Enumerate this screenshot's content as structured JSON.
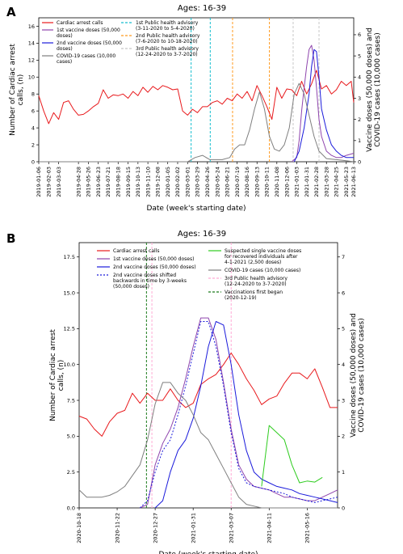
{
  "chart_data": [
    {
      "panel": "A",
      "title": "Ages: 16-39",
      "type": "line",
      "xlabel": "Date (week's starting date)",
      "ylabel": "Number of Cardiac arrest calls, (n)",
      "y2label": "Vaccine doses (50,000 doses) and COVID-19 cases (10,000 cases)",
      "xlim": [
        "2019-01-06",
        "2021-06-13"
      ],
      "ylim": [
        0,
        17
      ],
      "y2lim": [
        0,
        6.8
      ],
      "yticks": [
        "0",
        "2",
        "4",
        "6",
        "8",
        "10",
        "12",
        "14",
        "16"
      ],
      "y2ticks": [
        "0",
        "1",
        "2",
        "3",
        "4",
        "5",
        "6"
      ],
      "xticks": [
        "2019-01-06",
        "2019-02-03",
        "2019-03-03",
        "2019-04-28",
        "2019-05-26",
        "2019-06-23",
        "2019-07-21",
        "2019-08-18",
        "2019-09-15",
        "2019-10-13",
        "2019-11-10",
        "2019-12-08",
        "2020-01-05",
        "2020-02-02",
        "2020-03-01",
        "2020-03-29",
        "2020-04-26",
        "2020-05-24",
        "2020-06-21",
        "2020-07-19",
        "2020-08-16",
        "2020-09-13",
        "2020-10-11",
        "2020-11-08",
        "2020-12-06",
        "2021-01-03",
        "2021-01-31",
        "2021-02-28",
        "2021-03-28",
        "2021-04-25",
        "2021-05-23",
        "2021-06-13"
      ],
      "legend_placement": "top",
      "series": [
        {
          "name": "Cardiac arrest calls",
          "axis": "left",
          "color": "#e8191c",
          "dates": [
            "2019-01-06",
            "2019-01-20",
            "2019-02-03",
            "2019-02-17",
            "2019-03-03",
            "2019-03-17",
            "2019-03-31",
            "2019-04-14",
            "2019-04-28",
            "2019-05-12",
            "2019-05-26",
            "2019-06-09",
            "2019-06-23",
            "2019-07-07",
            "2019-07-21",
            "2019-08-04",
            "2019-08-18",
            "2019-09-01",
            "2019-09-15",
            "2019-09-29",
            "2019-10-13",
            "2019-10-27",
            "2019-11-10",
            "2019-11-24",
            "2019-12-08",
            "2019-12-22",
            "2020-01-05",
            "2020-01-19",
            "2020-02-02",
            "2020-02-16",
            "2020-03-01",
            "2020-03-15",
            "2020-03-29",
            "2020-04-12",
            "2020-04-26",
            "2020-05-10",
            "2020-05-24",
            "2020-06-07",
            "2020-06-21",
            "2020-07-05",
            "2020-07-19",
            "2020-08-02",
            "2020-08-16",
            "2020-08-30",
            "2020-09-13",
            "2020-09-27",
            "2020-10-11",
            "2020-10-25",
            "2020-11-08",
            "2020-11-22",
            "2020-12-06",
            "2020-12-20",
            "2021-01-03",
            "2021-01-17",
            "2021-01-31",
            "2021-02-14",
            "2021-02-28",
            "2021-03-14",
            "2021-03-28",
            "2021-04-11",
            "2021-04-25",
            "2021-05-09",
            "2021-05-23",
            "2021-06-06",
            "2021-06-13"
          ],
          "values": [
            7.8,
            6.0,
            4.5,
            5.8,
            5.0,
            7.0,
            7.2,
            6.2,
            5.5,
            5.6,
            6.0,
            6.5,
            6.9,
            8.5,
            7.5,
            7.9,
            7.8,
            8.0,
            7.5,
            8.3,
            7.8,
            8.8,
            8.2,
            8.9,
            8.5,
            9.0,
            8.8,
            8.5,
            8.6,
            6.0,
            5.5,
            6.2,
            5.8,
            6.5,
            6.5,
            7.0,
            7.2,
            6.8,
            7.5,
            7.2,
            8.0,
            7.5,
            8.3,
            7.2,
            9.0,
            7.8,
            6.5,
            5.0,
            8.8,
            7.5,
            8.6,
            8.5,
            7.8,
            9.5,
            8.0,
            9.2,
            10.8,
            8.6,
            9.0,
            8.0,
            8.5,
            9.5,
            9.0,
            9.5,
            7.0
          ]
        },
        {
          "name": "1st vaccine doses (50,000 doses)",
          "axis": "right",
          "color": "#8e44ad",
          "dates": [
            "2020-12-20",
            "2021-01-03",
            "2021-01-10",
            "2021-01-17",
            "2021-01-24",
            "2021-01-31",
            "2021-02-07",
            "2021-02-14",
            "2021-02-21",
            "2021-02-28",
            "2021-03-07",
            "2021-03-14",
            "2021-03-28",
            "2021-04-11",
            "2021-04-25",
            "2021-05-09",
            "2021-05-23",
            "2021-06-13"
          ],
          "values": [
            0,
            0.2,
            1.0,
            2.4,
            3.5,
            4.5,
            5.3,
            5.5,
            4.8,
            3.5,
            2.0,
            1.2,
            0.5,
            0.3,
            0.2,
            0.2,
            0.3,
            0.4
          ]
        },
        {
          "name": "2nd vaccine doses (50,000 doses)",
          "axis": "right",
          "color": "#1a1adb",
          "dates": [
            "2020-12-27",
            "2021-01-10",
            "2021-01-24",
            "2021-02-07",
            "2021-02-14",
            "2021-02-21",
            "2021-02-28",
            "2021-03-07",
            "2021-03-14",
            "2021-03-28",
            "2021-04-11",
            "2021-04-25",
            "2021-05-09",
            "2021-05-23",
            "2021-06-13"
          ],
          "values": [
            0,
            0.5,
            1.6,
            3.2,
            4.5,
            5.3,
            5.2,
            4.0,
            2.5,
            1.5,
            0.8,
            0.5,
            0.3,
            0.2,
            0.2
          ]
        },
        {
          "name": "COVID-19 cases (10,000 cases)",
          "axis": "right",
          "color": "#7f7f7f",
          "dates": [
            "2019-01-06",
            "2020-02-02",
            "2020-03-01",
            "2020-03-22",
            "2020-04-12",
            "2020-05-03",
            "2020-06-07",
            "2020-06-28",
            "2020-07-12",
            "2020-07-26",
            "2020-08-09",
            "2020-08-23",
            "2020-09-06",
            "2020-09-20",
            "2020-10-04",
            "2020-10-18",
            "2020-11-01",
            "2020-11-15",
            "2020-11-29",
            "2020-12-13",
            "2020-12-27",
            "2021-01-10",
            "2021-01-24",
            "2021-02-07",
            "2021-02-21",
            "2021-03-07",
            "2021-03-28",
            "2021-04-25",
            "2021-05-23",
            "2021-06-13"
          ],
          "values": [
            0,
            0,
            0,
            0.2,
            0.3,
            0.1,
            0.1,
            0.2,
            0.6,
            0.8,
            0.8,
            1.5,
            2.5,
            3.3,
            2.5,
            1.2,
            0.6,
            0.5,
            0.8,
            1.6,
            3.2,
            3.7,
            3.2,
            2.2,
            1.2,
            0.5,
            0.15,
            0.1,
            0.05,
            0.0
          ]
        }
      ],
      "advisories": [
        {
          "name": "1st Public health advisory (3-11-2020 to 5-4-2020)",
          "color": "#17becf",
          "start": "2020-03-11",
          "end": "2020-05-04"
        },
        {
          "name": "2nd Public health advisory (7-6-2020 to 10-18-2020)",
          "color": "#ff9a1f",
          "start": "2020-07-06",
          "end": "2020-10-18"
        },
        {
          "name": "3rd Public health advisory (12-24-2020 to 3-7-2020)",
          "color": "#c8c8c8",
          "start": "2020-12-24",
          "end": "2021-03-07"
        }
      ]
    },
    {
      "panel": "B",
      "title": "Ages: 16-39",
      "type": "line",
      "xlabel": "Date (week's starting date)",
      "ylabel": "Number of Cardiac arrest calls, (n)",
      "y2label": "Vaccine doses (50,000 doses) and COVID-19 cases (10,000 cases)",
      "xlim": [
        "2020-10-18",
        "2021-06-13"
      ],
      "ylim": [
        0,
        18.5
      ],
      "y2lim": [
        0,
        7.4
      ],
      "yticks": [
        "0.0",
        "2.5",
        "5.0",
        "7.5",
        "10.0",
        "12.5",
        "15.0",
        "17.5"
      ],
      "y2ticks": [
        "0",
        "1",
        "2",
        "3",
        "4",
        "5",
        "6",
        "7"
      ],
      "xticks": [
        "2020-10-18",
        "2020-11-22",
        "2020-12-27",
        "2021-01-31",
        "2021-03-07",
        "2021-04-11",
        "2021-05-16"
      ],
      "legend_placement": "top",
      "series": [
        {
          "name": "Cardiac arrest calls",
          "axis": "left",
          "color": "#e8191c",
          "dates": [
            "2020-10-18",
            "2020-10-25",
            "2020-11-01",
            "2020-11-08",
            "2020-11-15",
            "2020-11-22",
            "2020-11-29",
            "2020-12-06",
            "2020-12-13",
            "2020-12-20",
            "2020-12-27",
            "2021-01-03",
            "2021-01-10",
            "2021-01-17",
            "2021-01-24",
            "2021-01-31",
            "2021-02-07",
            "2021-02-14",
            "2021-02-21",
            "2021-02-28",
            "2021-03-07",
            "2021-03-14",
            "2021-03-21",
            "2021-03-28",
            "2021-04-04",
            "2021-04-11",
            "2021-04-18",
            "2021-04-25",
            "2021-05-02",
            "2021-05-09",
            "2021-05-16",
            "2021-05-23",
            "2021-05-30",
            "2021-06-06",
            "2021-06-13"
          ],
          "values": [
            6.4,
            6.2,
            5.5,
            5.0,
            6.0,
            6.6,
            6.8,
            8.0,
            7.3,
            8.0,
            7.5,
            7.5,
            8.3,
            7.5,
            7.0,
            7.3,
            8.6,
            9.0,
            9.3,
            10.0,
            10.8,
            10.0,
            9.0,
            8.2,
            7.2,
            7.6,
            7.8,
            8.7,
            9.4,
            9.4,
            9.0,
            9.7,
            8.4,
            7.0,
            7.0
          ]
        },
        {
          "name": "1st vaccine doses (50,000 doses)",
          "axis": "right",
          "color": "#8e44ad",
          "dates": [
            "2020-12-13",
            "2020-12-20",
            "2020-12-27",
            "2021-01-03",
            "2021-01-10",
            "2021-01-17",
            "2021-01-24",
            "2021-01-31",
            "2021-02-07",
            "2021-02-14",
            "2021-02-21",
            "2021-02-28",
            "2021-03-07",
            "2021-03-14",
            "2021-03-21",
            "2021-03-28",
            "2021-04-04",
            "2021-04-11",
            "2021-04-18",
            "2021-04-25",
            "2021-05-02",
            "2021-05-09",
            "2021-05-16",
            "2021-05-23",
            "2021-05-30",
            "2021-06-06",
            "2021-06-13"
          ],
          "values": [
            0,
            0.1,
            1.2,
            1.8,
            2.2,
            2.8,
            3.6,
            4.5,
            5.3,
            5.3,
            4.7,
            3.5,
            2.2,
            1.2,
            0.8,
            0.6,
            0.55,
            0.5,
            0.4,
            0.3,
            0.3,
            0.25,
            0.2,
            0.2,
            0.3,
            0.4,
            0.5
          ]
        },
        {
          "name": "2nd vaccine doses (50,000 doses)",
          "axis": "right",
          "color": "#1a1adb",
          "dates": [
            "2020-12-27",
            "2021-01-03",
            "2021-01-10",
            "2021-01-17",
            "2021-01-24",
            "2021-01-31",
            "2021-02-07",
            "2021-02-14",
            "2021-02-21",
            "2021-02-28",
            "2021-03-07",
            "2021-03-14",
            "2021-03-21",
            "2021-03-28",
            "2021-04-04",
            "2021-04-11",
            "2021-04-18",
            "2021-04-25",
            "2021-05-02",
            "2021-05-09",
            "2021-05-16",
            "2021-05-23",
            "2021-05-30",
            "2021-06-06",
            "2021-06-13"
          ],
          "values": [
            0,
            0.2,
            1.0,
            1.6,
            1.9,
            2.5,
            3.4,
            4.5,
            5.2,
            5.1,
            4.0,
            2.6,
            1.6,
            1.0,
            0.8,
            0.7,
            0.6,
            0.55,
            0.5,
            0.4,
            0.35,
            0.3,
            0.25,
            0.2,
            0.15
          ]
        },
        {
          "name": "2nd vaccine doses shifted backwards in time by 3-weeks (50,000 doses)",
          "axis": "right",
          "color": "#1a1adb",
          "dash": "2,2",
          "dates": [
            "2020-12-13",
            "2020-12-20",
            "2020-12-27",
            "2021-01-03",
            "2021-01-10",
            "2021-01-17",
            "2021-01-24",
            "2021-01-31",
            "2021-02-07",
            "2021-02-14",
            "2021-02-21",
            "2021-02-28",
            "2021-03-07",
            "2021-03-14",
            "2021-03-21",
            "2021-03-28",
            "2021-04-04",
            "2021-04-11",
            "2021-04-18",
            "2021-04-25",
            "2021-05-02",
            "2021-05-09",
            "2021-05-16",
            "2021-05-23",
            "2021-05-30",
            "2021-06-06",
            "2021-06-13"
          ],
          "values": [
            0,
            0.2,
            1.0,
            1.6,
            1.9,
            2.6,
            3.4,
            4.3,
            5.2,
            5.2,
            4.5,
            3.4,
            2.1,
            1.1,
            0.7,
            0.6,
            0.55,
            0.5,
            0.45,
            0.4,
            0.3,
            0.25,
            0.2,
            0.15,
            0.2,
            0.25,
            0.3
          ]
        },
        {
          "name": "COVID-19 cases (10,000 cases)",
          "axis": "right",
          "color": "#7f7f7f",
          "dates": [
            "2020-10-18",
            "2020-10-25",
            "2020-11-01",
            "2020-11-08",
            "2020-11-15",
            "2020-11-22",
            "2020-11-29",
            "2020-12-06",
            "2020-12-13",
            "2020-12-20",
            "2020-12-27",
            "2021-01-03",
            "2021-01-10",
            "2021-01-17",
            "2021-01-24",
            "2021-01-31",
            "2021-02-07",
            "2021-02-14",
            "2021-02-21",
            "2021-02-28",
            "2021-03-07",
            "2021-03-14",
            "2021-03-21",
            "2021-03-28",
            "2021-04-04",
            "2021-04-11",
            "2021-04-18",
            "2021-05-02",
            "2021-05-30",
            "2021-06-13"
          ],
          "values": [
            0.5,
            0.3,
            0.3,
            0.3,
            0.35,
            0.45,
            0.6,
            0.9,
            1.2,
            1.9,
            2.9,
            3.5,
            3.5,
            3.2,
            3.0,
            2.6,
            2.1,
            1.9,
            1.5,
            1.1,
            0.7,
            0.3,
            0.1,
            0.05,
            0.0,
            0.0,
            0.0,
            0.0,
            0.0,
            0.0
          ]
        },
        {
          "name": "Suspected single vaccine doses for recovered individuals after 4-1-2021 (2,500 doses)",
          "axis": "right",
          "color": "#2ecc1f",
          "dates": [
            "2021-04-04",
            "2021-04-11",
            "2021-04-18",
            "2021-04-25",
            "2021-05-02",
            "2021-05-09",
            "2021-05-16",
            "2021-05-23",
            "2021-05-30"
          ],
          "values": [
            0.6,
            2.3,
            2.1,
            1.9,
            1.2,
            0.7,
            0.75,
            0.72,
            0.85
          ]
        }
      ],
      "markers": [
        {
          "name": "3rd Public health advisory (12-24-2020 to 3-7-2020)",
          "color": "#ffaad4",
          "dates": [
            "2020-12-24",
            "2021-03-07"
          ],
          "style": "dashed"
        },
        {
          "name": "Vaccinations first began (2020-12-19)",
          "color": "#1a7a1a",
          "dates": [
            "2020-12-19"
          ],
          "style": "dashed"
        }
      ]
    }
  ]
}
